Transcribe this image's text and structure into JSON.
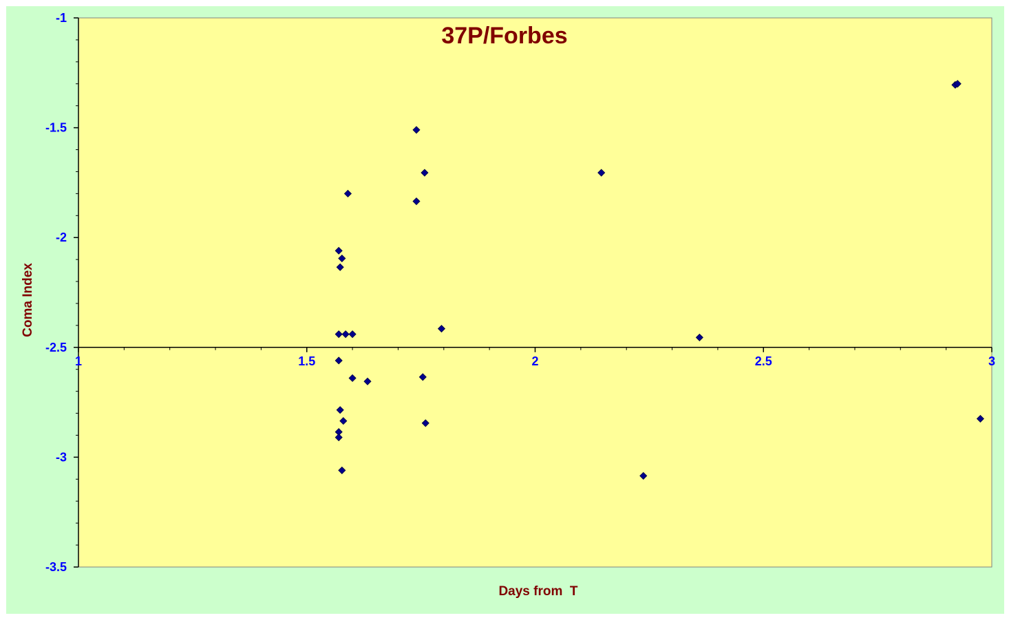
{
  "colors": {
    "chart_background": "#ccffcc",
    "plot_background": "#ffff99",
    "title": "#800000",
    "tick_labels": "#0000ff",
    "marker": "#00008b"
  },
  "chart_data": {
    "type": "scatter",
    "title": "37P/Forbes",
    "xlabel": "Days from  T",
    "ylabel": "Coma Index",
    "xlim": [
      1,
      3
    ],
    "ylim": [
      -3.5,
      -1
    ],
    "x_crosses_y_at": -2.5,
    "x_ticks": [
      1,
      1.5,
      2,
      2.5,
      3
    ],
    "x_tick_labels": [
      "1",
      "1.5",
      "2",
      "2.5",
      "3"
    ],
    "y_ticks": [
      -1,
      -1.5,
      -2,
      -2.5,
      -3,
      -3.5
    ],
    "y_tick_labels": [
      "-1",
      "-1.5",
      "-2",
      "-2.5",
      "-3",
      "-3.5"
    ],
    "marker": "diamond",
    "grid": false,
    "legend": "none",
    "points": [
      [
        1.57,
        -2.44
      ],
      [
        1.585,
        -2.44
      ],
      [
        1.6,
        -2.44
      ],
      [
        1.57,
        -2.06
      ],
      [
        1.577,
        -2.095
      ],
      [
        1.573,
        -2.135
      ],
      [
        1.59,
        -1.8
      ],
      [
        1.74,
        -1.51
      ],
      [
        1.758,
        -1.705
      ],
      [
        1.74,
        -1.835
      ],
      [
        1.795,
        -2.415
      ],
      [
        2.145,
        -1.705
      ],
      [
        2.36,
        -2.455
      ],
      [
        2.92,
        -1.305
      ],
      [
        2.925,
        -1.3
      ],
      [
        1.57,
        -2.56
      ],
      [
        1.6,
        -2.64
      ],
      [
        1.633,
        -2.655
      ],
      [
        1.754,
        -2.635
      ],
      [
        1.573,
        -2.785
      ],
      [
        1.58,
        -2.835
      ],
      [
        1.76,
        -2.845
      ],
      [
        1.57,
        -2.885
      ],
      [
        1.57,
        -2.91
      ],
      [
        1.577,
        -3.06
      ],
      [
        2.237,
        -3.085
      ],
      [
        2.975,
        -2.825
      ]
    ]
  }
}
